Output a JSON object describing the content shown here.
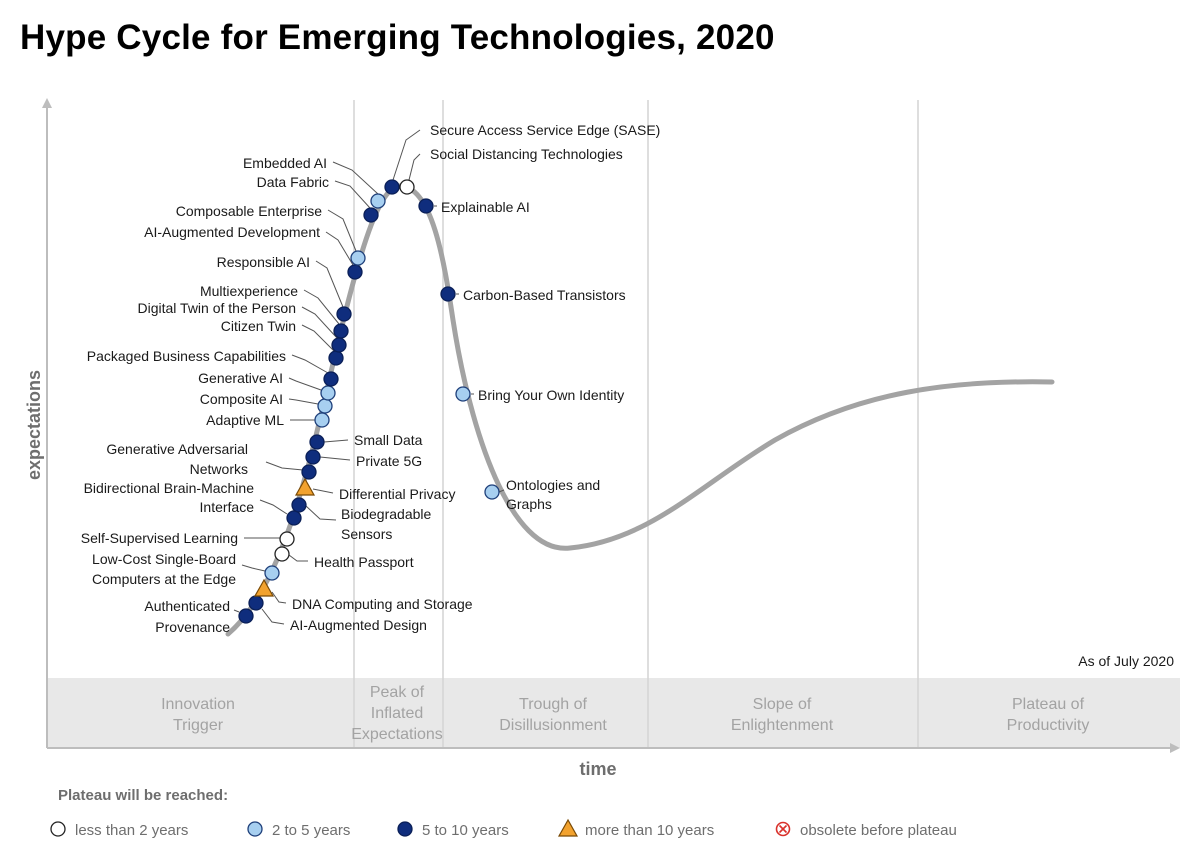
{
  "title": "Hype Cycle for Emerging Technologies, 2020",
  "axes": {
    "x": "time",
    "y": "expectations"
  },
  "as_of": "As of July 2020",
  "phases": [
    [
      "Innovation",
      "Trigger"
    ],
    [
      "Peak of",
      "Inflated",
      "Expectations"
    ],
    [
      "Trough of",
      "Disillusionment"
    ],
    [
      "Slope of",
      "Enlightenment"
    ],
    [
      "Plateau of",
      "Productivity"
    ]
  ],
  "legend": {
    "title": "Plateau will be reached:",
    "items": [
      {
        "key": "lt2",
        "label": "less than 2 years",
        "marker": "circle",
        "fill": "#ffffff",
        "stroke": "#222222"
      },
      {
        "key": "y2_5",
        "label": "2 to 5 years",
        "marker": "circle",
        "fill": "#a7cff0",
        "stroke": "#1e3f7a"
      },
      {
        "key": "y5_10",
        "label": "5 to 10 years",
        "marker": "circle",
        "fill": "#0f2d7d",
        "stroke": "#0a1f57"
      },
      {
        "key": "gt10",
        "label": "more than 10 years",
        "marker": "triangle",
        "fill": "#f2a22e",
        "stroke": "#7a4a05"
      },
      {
        "key": "obsolete",
        "label": "obsolete before plateau",
        "marker": "x-circle",
        "fill": "#ffffff",
        "stroke": "#d9312b"
      }
    ]
  },
  "technologies": [
    {
      "name": [
        "Secure Access Service Edge (SASE)"
      ],
      "category": "y5_10"
    },
    {
      "name": [
        "Social Distancing Technologies"
      ],
      "category": "lt2"
    },
    {
      "name": [
        "Embedded AI"
      ],
      "category": "y2_5"
    },
    {
      "name": [
        "Data Fabric"
      ],
      "category": "y5_10"
    },
    {
      "name": [
        "Explainable AI"
      ],
      "category": "y5_10"
    },
    {
      "name": [
        "Composable Enterprise"
      ],
      "category": "y2_5"
    },
    {
      "name": [
        "AI-Augmented Development"
      ],
      "category": "y5_10"
    },
    {
      "name": [
        "Responsible AI"
      ],
      "category": "y5_10"
    },
    {
      "name": [
        "Carbon-Based Transistors"
      ],
      "category": "y5_10"
    },
    {
      "name": [
        "Multiexperience"
      ],
      "category": "y5_10"
    },
    {
      "name": [
        "Digital Twin of the Person"
      ],
      "category": "y5_10"
    },
    {
      "name": [
        "Citizen Twin"
      ],
      "category": "y5_10"
    },
    {
      "name": [
        "Packaged Business Capabilities"
      ],
      "category": "y5_10"
    },
    {
      "name": [
        "Generative AI"
      ],
      "category": "y2_5"
    },
    {
      "name": [
        "Bring Your Own Identity"
      ],
      "category": "y2_5"
    },
    {
      "name": [
        "Composite AI"
      ],
      "category": "y2_5"
    },
    {
      "name": [
        "Adaptive ML"
      ],
      "category": "y2_5"
    },
    {
      "name": [
        "Small Data"
      ],
      "category": "y5_10"
    },
    {
      "name": [
        "Generative Adversarial",
        "Networks"
      ],
      "category": "y5_10"
    },
    {
      "name": [
        "Private 5G"
      ],
      "category": "y5_10"
    },
    {
      "name": [
        "Ontologies and",
        "Graphs"
      ],
      "category": "y2_5"
    },
    {
      "name": [
        "Differential Privacy"
      ],
      "category": "gt10"
    },
    {
      "name": [
        "Bidirectional Brain-Machine",
        "Interface"
      ],
      "category": "y5_10"
    },
    {
      "name": [
        "Biodegradable",
        "Sensors"
      ],
      "category": "y5_10"
    },
    {
      "name": [
        "Self-Supervised Learning"
      ],
      "category": "lt2"
    },
    {
      "name": [
        "Health Passport"
      ],
      "category": "lt2"
    },
    {
      "name": [
        "Low-Cost Single-Board",
        "Computers at the Edge"
      ],
      "category": "y2_5"
    },
    {
      "name": [
        "DNA Computing and Storage"
      ],
      "category": "gt10"
    },
    {
      "name": [
        "Authenticated",
        "Provenance"
      ],
      "category": "y5_10"
    },
    {
      "name": [
        "AI-Augmented Design"
      ],
      "category": "y5_10"
    }
  ],
  "colors": {
    "curve": "#a3a3a3",
    "band": "#e8e8e8",
    "axis": "#bdbdbd",
    "divider": "#d4d4d4"
  }
}
